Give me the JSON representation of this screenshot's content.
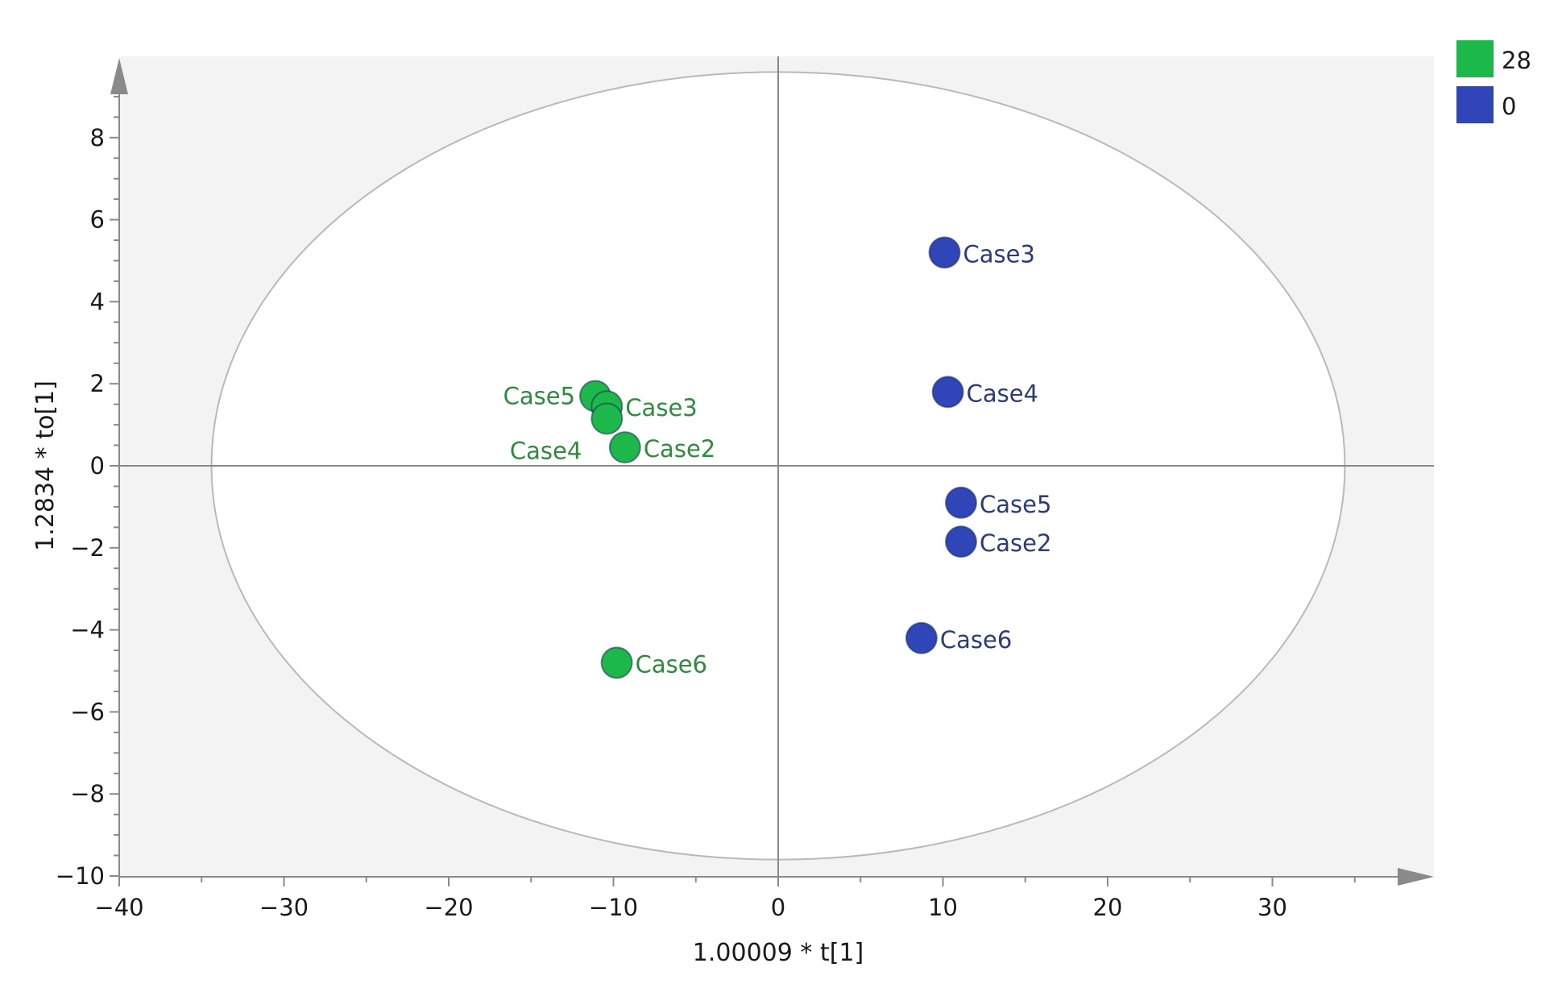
{
  "chart_data": {
    "type": "scatter",
    "xlabel": "1.00009 * t[1]",
    "ylabel": "1.2834 * to[1]",
    "xlim": [
      -40,
      40
    ],
    "ylim": [
      -10,
      10
    ],
    "x_ticks": [
      -40,
      -30,
      -20,
      -10,
      0,
      10,
      20,
      30
    ],
    "x_tick_labels": [
      "−40",
      "−30",
      "−20",
      "−10",
      "0",
      "10",
      "20",
      "30"
    ],
    "y_ticks": [
      -10,
      -8,
      -6,
      -4,
      -2,
      0,
      2,
      4,
      6,
      8
    ],
    "y_tick_labels": [
      "−10",
      "−8",
      "−6",
      "−4",
      "−2",
      "0",
      "2",
      "4",
      "6",
      "8"
    ],
    "grid": false,
    "confidence_ellipse": {
      "center": [
        0,
        0
      ],
      "x_semi_axis": 34.4,
      "y_semi_axis": 9.6
    },
    "legend_position": "top-right",
    "series": [
      {
        "name": "28",
        "color": "#1db84a",
        "label_color": "#2e8b3e",
        "points": [
          {
            "label": "Case5",
            "x": -11.1,
            "y": 1.7,
            "label_side": "left"
          },
          {
            "label": "Case3",
            "x": -10.4,
            "y": 1.45,
            "label_side": "right"
          },
          {
            "label": "Case4",
            "x": -10.4,
            "y": 1.15,
            "label_side": "left-below"
          },
          {
            "label": "Case2",
            "x": -9.3,
            "y": 0.45,
            "label_side": "right"
          },
          {
            "label": "Case6",
            "x": -9.8,
            "y": -4.8,
            "label_side": "right"
          }
        ]
      },
      {
        "name": "0",
        "color": "#2f45b8",
        "label_color": "#2b3a7a",
        "points": [
          {
            "label": "Case3",
            "x": 10.1,
            "y": 5.2,
            "label_side": "right"
          },
          {
            "label": "Case4",
            "x": 10.3,
            "y": 1.8,
            "label_side": "right"
          },
          {
            "label": "Case5",
            "x": 11.1,
            "y": -0.9,
            "label_side": "right"
          },
          {
            "label": "Case2",
            "x": 11.1,
            "y": -1.85,
            "label_side": "right"
          },
          {
            "label": "Case6",
            "x": 8.7,
            "y": -4.2,
            "label_side": "right"
          }
        ]
      }
    ]
  }
}
